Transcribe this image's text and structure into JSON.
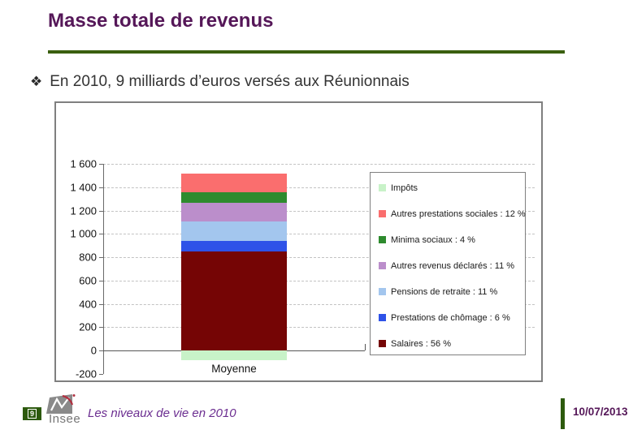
{
  "slide": {
    "title": "Masse totale de revenus",
    "bullet_icon": "❖",
    "bullet": "En 2010, 9 milliards d’euros versés aux Réunionnais"
  },
  "colors": {
    "title_text": "#551758",
    "separator_green": "#3a5f0f",
    "footer_green": "#2d5a0e",
    "footer_title_text": "#6b2d90",
    "date_text": "#551758"
  },
  "chart_data": {
    "type": "bar",
    "stacked": true,
    "title": "",
    "xlabel": "",
    "ylabel": "",
    "categories": [
      "Moyenne"
    ],
    "ylim": [
      -200,
      1600
    ],
    "grid": "dashed horizontal",
    "legend_position": "right, boxed, overlapping plot",
    "yticks": [
      {
        "value": 1600,
        "label": "1 600"
      },
      {
        "value": 1400,
        "label": "1 400"
      },
      {
        "value": 1200,
        "label": "1 200"
      },
      {
        "value": 1000,
        "label": "1 000"
      },
      {
        "value": 800,
        "label": "800"
      },
      {
        "value": 600,
        "label": "600"
      },
      {
        "value": 400,
        "label": "400"
      },
      {
        "value": 200,
        "label": "200"
      },
      {
        "value": 0,
        "label": "0"
      },
      {
        "value": -200,
        "label": "-200"
      }
    ],
    "series": [
      {
        "name": "Impôts",
        "legend": "Impôts",
        "value": -80,
        "percent": null,
        "color": "#c8f2c8"
      },
      {
        "name": "Autres prestations sociales",
        "legend": "Autres prestations sociales : 12 %",
        "value": 160,
        "percent": 12,
        "color": "#fa6e6e"
      },
      {
        "name": "Minima sociaux",
        "legend": "Minima sociaux : 4 %",
        "value": 95,
        "percent": 4,
        "color": "#2e8b2e"
      },
      {
        "name": "Autres revenus déclarés",
        "legend": "Autres revenus déclarés : 11 %",
        "value": 160,
        "percent": 11,
        "color": "#bb8ecb"
      },
      {
        "name": "Pensions de retraite",
        "legend": "Pensions de retraite : 11 %",
        "value": 165,
        "percent": 11,
        "color": "#a3c6ee"
      },
      {
        "name": "Prestations de chômage",
        "legend": "Prestations de chômage : 6 %",
        "value": 90,
        "percent": 6,
        "color": "#2e52e8"
      },
      {
        "name": "Salaires",
        "legend": "Salaires : 56 %",
        "value": 850,
        "percent": 56,
        "color": "#750505"
      }
    ]
  },
  "footer": {
    "page_number": "9",
    "logo_text": "Insee",
    "presentation_title": "Les niveaux de vie en 2010",
    "date": "10/07/2013"
  }
}
